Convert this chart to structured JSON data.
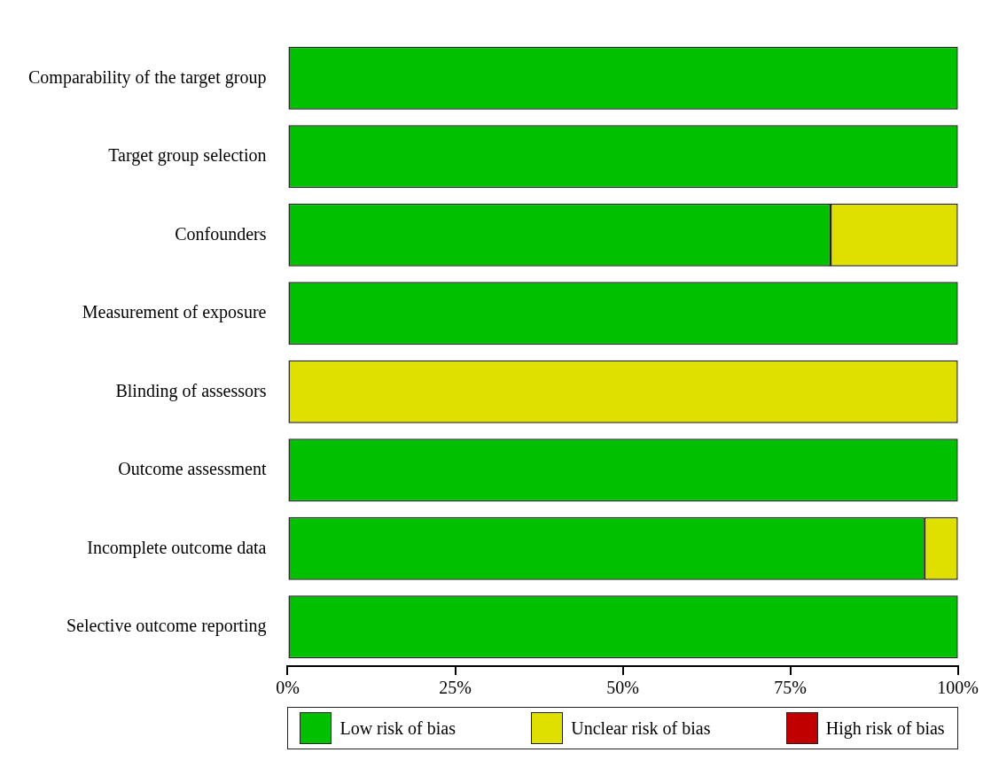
{
  "chart_data": {
    "type": "bar",
    "orientation": "horizontal",
    "stacked": true,
    "categories": [
      "Comparability of the target group",
      "Target group selection",
      "Confounders",
      "Measurement of exposure",
      "Blinding of assessors",
      "Outcome assessment",
      "Incomplete outcome data",
      "Selective outcome reporting"
    ],
    "series": [
      {
        "name": "Low risk of bias",
        "color": "#00c000",
        "values": [
          100,
          100,
          81,
          100,
          0,
          100,
          95,
          100
        ]
      },
      {
        "name": "Unclear risk of bias",
        "color": "#e0e000",
        "values": [
          0,
          0,
          19,
          0,
          100,
          0,
          5,
          0
        ]
      },
      {
        "name": "High risk of bias",
        "color": "#c00000",
        "values": [
          0,
          0,
          0,
          0,
          0,
          0,
          0,
          0
        ]
      }
    ],
    "xlim": [
      0,
      100
    ],
    "xticks": [
      {
        "value": 0,
        "label": "0%"
      },
      {
        "value": 25,
        "label": "25%"
      },
      {
        "value": 50,
        "label": "50%"
      },
      {
        "value": 75,
        "label": "75%"
      },
      {
        "value": 100,
        "label": "100%"
      }
    ],
    "grid": false,
    "legend": "bottom"
  }
}
